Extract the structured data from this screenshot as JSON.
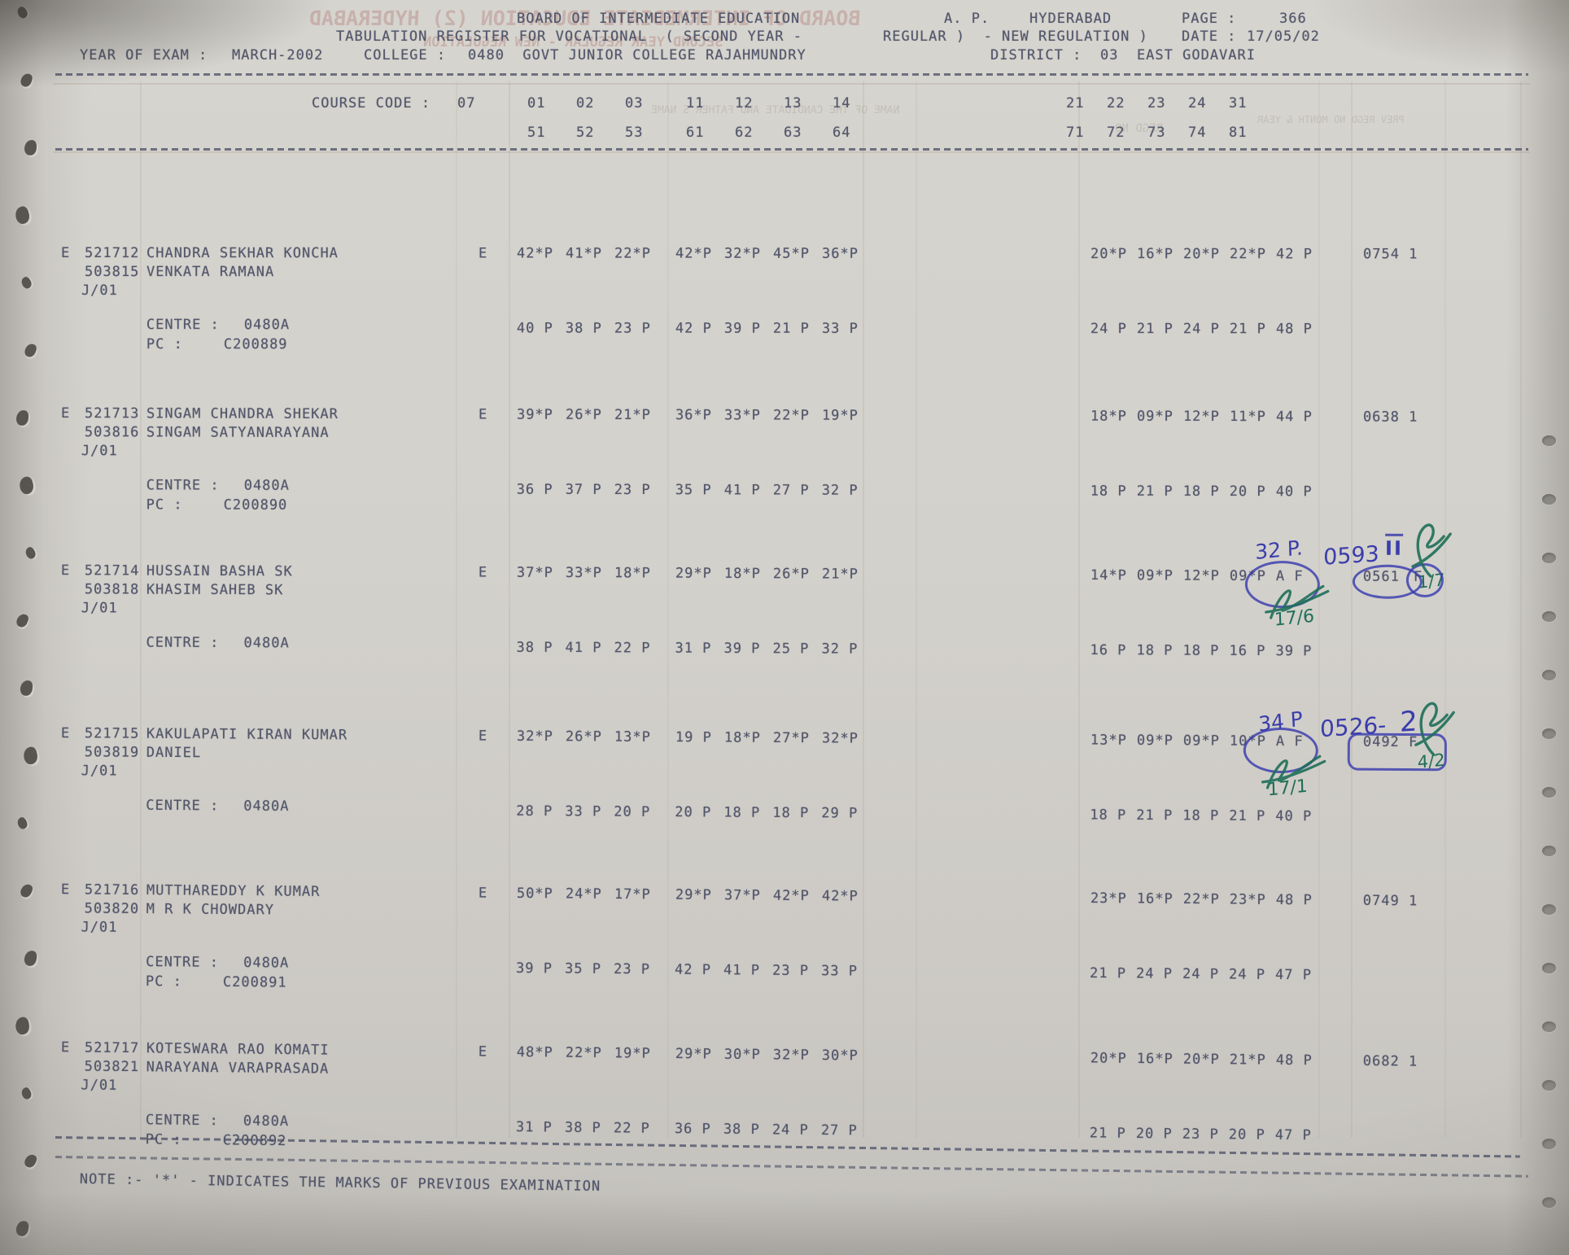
{
  "palette": {
    "paper": "#d3d1cb",
    "scanner_bg": "#8f8e8a",
    "print_ink": "#474c63",
    "pen_blue": "#3a3dac",
    "pen_green": "#1f6f59"
  },
  "header": {
    "board": "BOARD OF INTERMEDIATE EDUCATION",
    "state": "A. P.",
    "city": "HYDERABAD",
    "page_label": "PAGE :",
    "page_value": "366",
    "register_line": "TABULATION REGISTER FOR VOCATIONAL  ( SECOND YEAR -",
    "regulation_line": "REGULAR )  - NEW REGULATION )",
    "date_label": "DATE :",
    "date_value": "17/05/02",
    "year_label": "YEAR OF EXAM :",
    "year_value": "MARCH-2002",
    "college_label": "COLLEGE :",
    "college_value": "0480  GOVT JUNIOR COLLEGE RAJAHMUNDRY",
    "district_label": "DISTRICT :",
    "district_value": "03  EAST GODAVARI"
  },
  "table_header": {
    "course_code_label": "COURSE CODE :",
    "course_code_value": "07",
    "row1": {
      "g1": [
        "01",
        "02",
        "03"
      ],
      "g2": [
        "11",
        "12",
        "13",
        "14"
      ],
      "g3": [
        "21",
        "22",
        "23",
        "24",
        "31"
      ]
    },
    "row2": {
      "g1": [
        "51",
        "52",
        "53"
      ],
      "g2": [
        "61",
        "62",
        "63",
        "64"
      ],
      "g3": [
        "71",
        "72",
        "73",
        "74",
        "81"
      ]
    }
  },
  "records": [
    {
      "status": "E",
      "reg_no": "521712",
      "prev_reg_no": "503815",
      "appearance": "J/01",
      "name": "CHANDRA SEKHAR KONCHA",
      "father_name": "VENKATA RAMANA",
      "medium": "E",
      "marks_row1": {
        "g1": [
          "42*P",
          "41*P",
          "22*P"
        ],
        "g2": [
          "42*P",
          "32*P",
          "45*P",
          "36*P"
        ],
        "g3": [
          "20*P",
          "16*P",
          "20*P",
          "22*P",
          "42 P"
        ]
      },
      "total": "0754 1",
      "grade": "",
      "centre_label": "CENTRE :",
      "centre": "0480A",
      "pc_label": "PC :",
      "pc": "C200889",
      "marks_row2": {
        "g1": [
          "40 P",
          "38 P",
          "23 P"
        ],
        "g2": [
          "42 P",
          "39 P",
          "21 P",
          "33 P"
        ],
        "g3": [
          "24 P",
          "21 P",
          "24 P",
          "21 P",
          "48 P"
        ]
      }
    },
    {
      "status": "E",
      "reg_no": "521713",
      "prev_reg_no": "503816",
      "appearance": "J/01",
      "name": "SINGAM CHANDRA SHEKAR",
      "father_name": "SINGAM SATYANARAYANA",
      "medium": "E",
      "marks_row1": {
        "g1": [
          "39*P",
          "26*P",
          "21*P"
        ],
        "g2": [
          "36*P",
          "33*P",
          "22*P",
          "19*P"
        ],
        "g3": [
          "18*P",
          "09*P",
          "12*P",
          "11*P",
          "44 P"
        ]
      },
      "total": "0638 1",
      "grade": "",
      "centre_label": "CENTRE :",
      "centre": "0480A",
      "pc_label": "PC :",
      "pc": "C200890",
      "marks_row2": {
        "g1": [
          "36 P",
          "37 P",
          "23 P"
        ],
        "g2": [
          "35 P",
          "41 P",
          "27 P",
          "32 P"
        ],
        "g3": [
          "18 P",
          "21 P",
          "18 P",
          "20 P",
          "40 P"
        ]
      }
    },
    {
      "status": "E",
      "reg_no": "521714",
      "prev_reg_no": "503818",
      "appearance": "J/01",
      "name": "HUSSAIN BASHA SK",
      "father_name": "KHASIM SAHEB SK",
      "medium": "E",
      "marks_row1": {
        "g1": [
          "37*P",
          "33*P",
          "18*P"
        ],
        "g2": [
          "29*P",
          "18*P",
          "26*P",
          "21*P"
        ],
        "g3": [
          "14*P",
          "09*P",
          "12*P",
          "09*P",
          "A F"
        ]
      },
      "total": "0561",
      "grade": "F",
      "centre_label": "CENTRE :",
      "centre": "0480A",
      "pc_label": "",
      "pc": "",
      "marks_row2": {
        "g1": [
          "38 P",
          "41 P",
          "22 P"
        ],
        "g2": [
          "31 P",
          "39 P",
          "25 P",
          "32 P"
        ],
        "g3": [
          "16 P",
          "18 P",
          "18 P",
          "16 P",
          "39 P"
        ]
      },
      "annotations": {
        "revised_marks": "32 P.",
        "revised_total": "0593",
        "grade_roman": "II",
        "date_note": "17/6",
        "tick_note": "1/7"
      }
    },
    {
      "status": "E",
      "reg_no": "521715",
      "prev_reg_no": "503819",
      "appearance": "J/01",
      "name": "KAKULAPATI KIRAN KUMAR",
      "father_name": "DANIEL",
      "medium": "E",
      "marks_row1": {
        "g1": [
          "32*P",
          "26*P",
          "13*P"
        ],
        "g2": [
          "19 P",
          "18*P",
          "27*P",
          "32*P"
        ],
        "g3": [
          "13*P",
          "09*P",
          "09*P",
          "10*P",
          "A F"
        ]
      },
      "total": "0492 F",
      "grade": "",
      "centre_label": "CENTRE :",
      "centre": "0480A",
      "pc_label": "",
      "pc": "",
      "marks_row2": {
        "g1": [
          "28 P",
          "33 P",
          "20 P"
        ],
        "g2": [
          "20 P",
          "18 P",
          "18 P",
          "29 P"
        ],
        "g3": [
          "18 P",
          "21 P",
          "18 P",
          "21 P",
          "40 P"
        ]
      },
      "annotations": {
        "revised_marks": "34 P",
        "revised_total": "0526-",
        "result_note": "2",
        "date_note": "17/1",
        "tick_note": "4/2"
      }
    },
    {
      "status": "E",
      "reg_no": "521716",
      "prev_reg_no": "503820",
      "appearance": "J/01",
      "name": "MUTTHAREDDY K KUMAR",
      "father_name": "M R K CHOWDARY",
      "medium": "E",
      "marks_row1": {
        "g1": [
          "50*P",
          "24*P",
          "17*P"
        ],
        "g2": [
          "29*P",
          "37*P",
          "42*P",
          "42*P"
        ],
        "g3": [
          "23*P",
          "16*P",
          "22*P",
          "23*P",
          "48 P"
        ]
      },
      "total": "0749 1",
      "grade": "",
      "centre_label": "CENTRE :",
      "centre": "0480A",
      "pc_label": "PC :",
      "pc": "C200891",
      "marks_row2": {
        "g1": [
          "39 P",
          "35 P",
          "23 P"
        ],
        "g2": [
          "42 P",
          "41 P",
          "23 P",
          "33 P"
        ],
        "g3": [
          "21 P",
          "24 P",
          "24 P",
          "24 P",
          "47 P"
        ]
      }
    },
    {
      "status": "E",
      "reg_no": "521717",
      "prev_reg_no": "503821",
      "appearance": "J/01",
      "name": "KOTESWARA RAO KOMATI",
      "father_name": "NARAYANA VARAPRASADA",
      "medium": "E",
      "marks_row1": {
        "g1": [
          "48*P",
          "22*P",
          "19*P"
        ],
        "g2": [
          "29*P",
          "30*P",
          "32*P",
          "30*P"
        ],
        "g3": [
          "20*P",
          "16*P",
          "20*P",
          "21*P",
          "48 P"
        ]
      },
      "total": "0682 1",
      "grade": "",
      "centre_label": "CENTRE :",
      "centre": "0480A",
      "pc_label": "PC :",
      "pc": "C200892",
      "marks_row2": {
        "g1": [
          "31 P",
          "38 P",
          "22 P"
        ],
        "g2": [
          "36 P",
          "38 P",
          "24 P",
          "27 P"
        ],
        "g3": [
          "21 P",
          "20 P",
          "23 P",
          "20 P",
          "47 P"
        ]
      }
    }
  ],
  "note": "NOTE :- '*' - INDICATES THE MARKS OF PREVIOUS EXAMINATION",
  "ghosts": {
    "header_mirror": "BOARD OF INTERMEDIATE EDUCATION (2) HYDERABAD",
    "header_mirror2": "SECOND YEAR REGULAR - NEW REGULATION",
    "name_col_mirror": "NAME OF THE CANDIDATE AND FATHER'S NAME",
    "regd_mirror": "REGD NO",
    "prev_mirror": "PREV REGD NO MONTH & YEAR"
  }
}
